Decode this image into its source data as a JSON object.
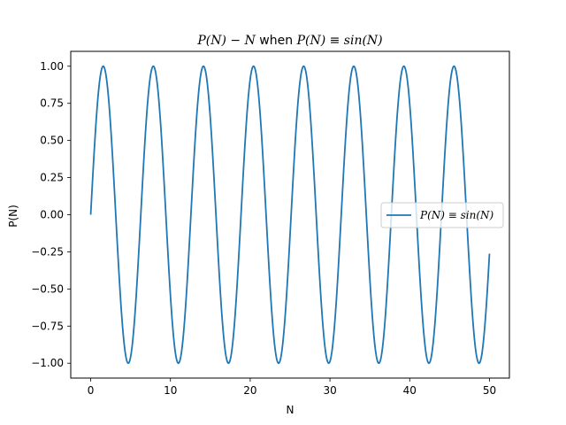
{
  "chart_data": {
    "type": "line",
    "title": "P(N) − N when P(N) ≡ sin(N)",
    "title_parts": {
      "lhs": "P(N) − N",
      "mid": " when ",
      "rhs": "P(N) ≡ sin(N)"
    },
    "xlabel": "N",
    "ylabel": "P(N)",
    "xlim": [
      -2.5,
      52.5
    ],
    "ylim": [
      -1.1,
      1.1
    ],
    "x_ticks": [
      0,
      10,
      20,
      30,
      40,
      50
    ],
    "x_tick_labels": [
      "0",
      "10",
      "20",
      "30",
      "40",
      "50"
    ],
    "y_ticks": [
      -1.0,
      -0.75,
      -0.5,
      -0.25,
      0.0,
      0.25,
      0.5,
      0.75,
      1.0
    ],
    "y_tick_labels": [
      "−1.00",
      "−0.75",
      "−0.50",
      "−0.25",
      "0.00",
      "0.25",
      "0.50",
      "0.75",
      "1.00"
    ],
    "grid": false,
    "legend_placement": "center-right",
    "series": [
      {
        "name": "P(N) ≡ sin(N)",
        "color": "#1f77b4",
        "function": "sin",
        "x_range": [
          0,
          50
        ],
        "sample_count": 1001
      }
    ]
  }
}
